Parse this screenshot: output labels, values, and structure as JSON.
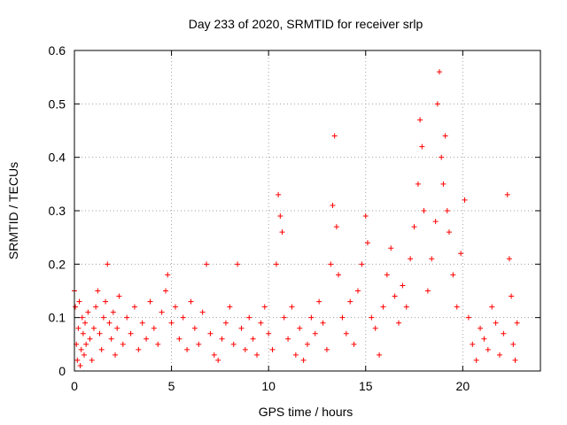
{
  "chart_data": {
    "type": "scatter",
    "title": "Day 233 of 2020, SRMTID for receiver srlp",
    "xlabel": "GPS time / hours",
    "ylabel": "SRMTID / TECUs",
    "xlim": [
      0,
      24
    ],
    "ylim": [
      0,
      0.6
    ],
    "xticks": [
      0,
      5,
      10,
      15,
      20
    ],
    "yticks": [
      0,
      0.1,
      0.2,
      0.3,
      0.4,
      0.5,
      0.6
    ],
    "ytick_labels": [
      "0",
      "0.1",
      "0.2",
      "0.3",
      "0.4",
      "0.5",
      "0.6"
    ],
    "grid": true,
    "marker": "+",
    "series": [
      {
        "name": "SRMTID",
        "color": "#ff0000",
        "points": [
          [
            0.0,
            0.15
          ],
          [
            0.05,
            0.12
          ],
          [
            0.1,
            0.05
          ],
          [
            0.15,
            0.02
          ],
          [
            0.2,
            0.08
          ],
          [
            0.25,
            0.13
          ],
          [
            0.3,
            0.01
          ],
          [
            0.35,
            0.04
          ],
          [
            0.4,
            0.1
          ],
          [
            0.45,
            0.07
          ],
          [
            0.5,
            0.03
          ],
          [
            0.55,
            0.09
          ],
          [
            0.6,
            0.05
          ],
          [
            0.7,
            0.11
          ],
          [
            0.8,
            0.06
          ],
          [
            0.9,
            0.02
          ],
          [
            1.0,
            0.08
          ],
          [
            1.1,
            0.12
          ],
          [
            1.2,
            0.15
          ],
          [
            1.3,
            0.07
          ],
          [
            1.4,
            0.04
          ],
          [
            1.5,
            0.1
          ],
          [
            1.6,
            0.13
          ],
          [
            1.7,
            0.2
          ],
          [
            1.8,
            0.09
          ],
          [
            1.9,
            0.06
          ],
          [
            2.0,
            0.11
          ],
          [
            2.1,
            0.03
          ],
          [
            2.2,
            0.08
          ],
          [
            2.3,
            0.14
          ],
          [
            2.5,
            0.05
          ],
          [
            2.7,
            0.1
          ],
          [
            2.9,
            0.07
          ],
          [
            3.1,
            0.12
          ],
          [
            3.3,
            0.04
          ],
          [
            3.5,
            0.09
          ],
          [
            3.7,
            0.06
          ],
          [
            3.9,
            0.13
          ],
          [
            4.1,
            0.08
          ],
          [
            4.3,
            0.05
          ],
          [
            4.5,
            0.11
          ],
          [
            4.7,
            0.15
          ],
          [
            4.8,
            0.18
          ],
          [
            5.0,
            0.09
          ],
          [
            5.2,
            0.12
          ],
          [
            5.4,
            0.06
          ],
          [
            5.6,
            0.1
          ],
          [
            5.8,
            0.04
          ],
          [
            6.0,
            0.13
          ],
          [
            6.2,
            0.08
          ],
          [
            6.4,
            0.05
          ],
          [
            6.6,
            0.11
          ],
          [
            6.8,
            0.2
          ],
          [
            7.0,
            0.07
          ],
          [
            7.2,
            0.03
          ],
          [
            7.4,
            0.02
          ],
          [
            7.6,
            0.06
          ],
          [
            7.8,
            0.09
          ],
          [
            8.0,
            0.12
          ],
          [
            8.2,
            0.05
          ],
          [
            8.4,
            0.2
          ],
          [
            8.6,
            0.08
          ],
          [
            8.8,
            0.04
          ],
          [
            9.0,
            0.1
          ],
          [
            9.2,
            0.06
          ],
          [
            9.4,
            0.03
          ],
          [
            9.6,
            0.09
          ],
          [
            9.8,
            0.12
          ],
          [
            10.0,
            0.07
          ],
          [
            10.2,
            0.04
          ],
          [
            10.4,
            0.2
          ],
          [
            10.5,
            0.33
          ],
          [
            10.6,
            0.29
          ],
          [
            10.7,
            0.26
          ],
          [
            10.8,
            0.1
          ],
          [
            11.0,
            0.06
          ],
          [
            11.2,
            0.12
          ],
          [
            11.4,
            0.03
          ],
          [
            11.6,
            0.08
          ],
          [
            11.8,
            0.02
          ],
          [
            12.0,
            0.05
          ],
          [
            12.2,
            0.1
          ],
          [
            12.4,
            0.07
          ],
          [
            12.6,
            0.13
          ],
          [
            12.8,
            0.09
          ],
          [
            13.0,
            0.04
          ],
          [
            13.2,
            0.2
          ],
          [
            13.3,
            0.31
          ],
          [
            13.4,
            0.44
          ],
          [
            13.5,
            0.27
          ],
          [
            13.6,
            0.18
          ],
          [
            13.8,
            0.1
          ],
          [
            14.0,
            0.07
          ],
          [
            14.2,
            0.13
          ],
          [
            14.4,
            0.05
          ],
          [
            14.6,
            0.15
          ],
          [
            14.8,
            0.2
          ],
          [
            15.0,
            0.29
          ],
          [
            15.1,
            0.24
          ],
          [
            15.3,
            0.1
          ],
          [
            15.5,
            0.08
          ],
          [
            15.7,
            0.03
          ],
          [
            15.9,
            0.12
          ],
          [
            16.1,
            0.18
          ],
          [
            16.3,
            0.23
          ],
          [
            16.5,
            0.14
          ],
          [
            16.7,
            0.09
          ],
          [
            16.9,
            0.16
          ],
          [
            17.1,
            0.12
          ],
          [
            17.3,
            0.21
          ],
          [
            17.5,
            0.27
          ],
          [
            17.7,
            0.35
          ],
          [
            17.8,
            0.47
          ],
          [
            17.9,
            0.42
          ],
          [
            18.0,
            0.3
          ],
          [
            18.2,
            0.15
          ],
          [
            18.4,
            0.21
          ],
          [
            18.6,
            0.28
          ],
          [
            18.7,
            0.5
          ],
          [
            18.8,
            0.56
          ],
          [
            18.9,
            0.4
          ],
          [
            19.0,
            0.35
          ],
          [
            19.1,
            0.44
          ],
          [
            19.2,
            0.3
          ],
          [
            19.3,
            0.26
          ],
          [
            19.5,
            0.18
          ],
          [
            19.7,
            0.12
          ],
          [
            19.9,
            0.22
          ],
          [
            20.1,
            0.32
          ],
          [
            20.3,
            0.1
          ],
          [
            20.5,
            0.05
          ],
          [
            20.7,
            0.02
          ],
          [
            20.9,
            0.08
          ],
          [
            21.1,
            0.06
          ],
          [
            21.3,
            0.04
          ],
          [
            21.5,
            0.12
          ],
          [
            21.7,
            0.09
          ],
          [
            21.9,
            0.03
          ],
          [
            22.1,
            0.07
          ],
          [
            22.3,
            0.33
          ],
          [
            22.4,
            0.21
          ],
          [
            22.5,
            0.14
          ],
          [
            22.6,
            0.05
          ],
          [
            22.7,
            0.02
          ],
          [
            22.8,
            0.09
          ]
        ]
      }
    ]
  }
}
